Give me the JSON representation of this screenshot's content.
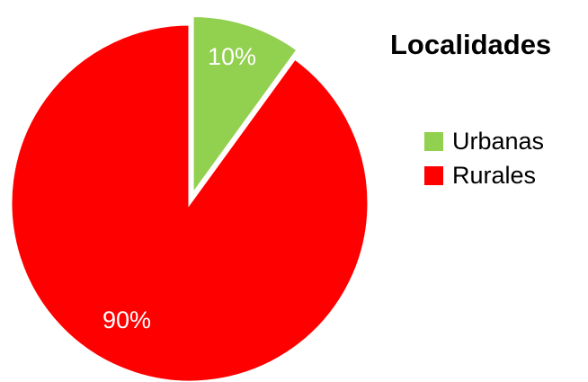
{
  "chart_data": {
    "type": "pie",
    "title": "Localidades",
    "categories": [
      "Urbanas",
      "Rurales"
    ],
    "values": [
      10,
      90
    ],
    "data_labels": [
      "10%",
      "90%"
    ],
    "colors": [
      "#92d050",
      "#ff0000"
    ],
    "exploded": [
      true,
      false
    ],
    "legend_position": "right"
  }
}
